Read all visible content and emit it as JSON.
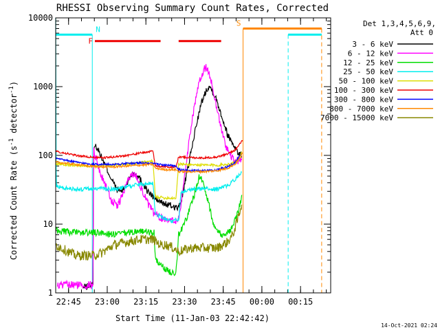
{
  "chart_data": {
    "type": "line",
    "title": "RHESSI Observing Summary Count Rates, Corrected",
    "xlabel": "Start Time (11-Jan-03 22:42:42)",
    "ylabel_main": "Corrected Count Rate (s",
    "ylabel_sup1": "-1",
    "ylabel_mid": " detector",
    "ylabel_sup2": "-1",
    "ylabel_end": ")",
    "x_range_min": [
      -2.7,
      104
    ],
    "y_range": [
      1,
      10000
    ],
    "y_scale": "log",
    "x_ticks": [
      {
        "t": 2.3,
        "label": "22:45"
      },
      {
        "t": 17.3,
        "label": "23:00"
      },
      {
        "t": 32.3,
        "label": "23:15"
      },
      {
        "t": 47.3,
        "label": "23:30"
      },
      {
        "t": 62.3,
        "label": "23:45"
      },
      {
        "t": 77.3,
        "label": "00:00"
      },
      {
        "t": 92.3,
        "label": "00:15"
      }
    ],
    "y_ticks": [
      {
        "v": 1,
        "label": "1"
      },
      {
        "v": 10,
        "label": "10"
      },
      {
        "v": 100,
        "label": "100"
      },
      {
        "v": 1000,
        "label": "1000"
      },
      {
        "v": 10000,
        "label": "10000"
      }
    ],
    "legend": {
      "position": "top-right",
      "header1": "Det 1,3,4,5,6,9,",
      "header2": "Att 0",
      "entries": [
        {
          "label": "3 - 6 keV",
          "color": "#000000"
        },
        {
          "label": "6 - 12 keV",
          "color": "#ff00ff"
        },
        {
          "label": "12 - 25 keV",
          "color": "#00dd00"
        },
        {
          "label": "25 - 50 keV",
          "color": "#00eeee"
        },
        {
          "label": "50 - 100 keV",
          "color": "#dddd00"
        },
        {
          "label": "100 - 300 keV",
          "color": "#ee0000"
        },
        {
          "label": "300 - 800 keV",
          "color": "#0000ff"
        },
        {
          "label": "800 - 7000 keV",
          "color": "#ff8800"
        },
        {
          "label": "7000 - 15000 keV",
          "color": "#888800"
        }
      ]
    },
    "flag_bars": [
      {
        "label": "N",
        "color": "#00eeee",
        "level": 5700,
        "segments": [
          [
            -2.7,
            11.5
          ],
          [
            87.5,
            100.5
          ]
        ],
        "boundaries": [
          11.5,
          87.5
        ]
      },
      {
        "label": "F",
        "color": "#ee0000",
        "level": 4600,
        "segments": [
          [
            12.5,
            38
          ],
          [
            45,
            61.5
          ]
        ]
      },
      {
        "label": "S",
        "color": "#ff8800",
        "level": 7000,
        "segments": [
          [
            70,
            100.5
          ]
        ],
        "boundaries": [
          70,
          100.5
        ]
      }
    ],
    "series": [
      {
        "name": "3 - 6 keV",
        "color": "#000000",
        "noise": 0.05,
        "points": [
          [
            8,
            1.2
          ],
          [
            11.8,
            1.3
          ],
          [
            12.0,
            140
          ],
          [
            13.5,
            130
          ],
          [
            15,
            95
          ],
          [
            17,
            65
          ],
          [
            19,
            45
          ],
          [
            21,
            32
          ],
          [
            23,
            30
          ],
          [
            25,
            40
          ],
          [
            27,
            55
          ],
          [
            29,
            52
          ],
          [
            31,
            40
          ],
          [
            33,
            30
          ],
          [
            35,
            25
          ],
          [
            37,
            22
          ],
          [
            39,
            20
          ],
          [
            41,
            19
          ],
          [
            43,
            18
          ],
          [
            45,
            17
          ],
          [
            46,
            22
          ],
          [
            48,
            50
          ],
          [
            50,
            120
          ],
          [
            52,
            300
          ],
          [
            54,
            600
          ],
          [
            56,
            950
          ],
          [
            57,
            1000
          ],
          [
            58,
            900
          ],
          [
            60,
            600
          ],
          [
            62,
            350
          ],
          [
            64,
            200
          ],
          [
            66,
            150
          ],
          [
            68,
            110
          ],
          [
            69.5,
            100
          ]
        ]
      },
      {
        "name": "6 - 12 keV",
        "color": "#ff00ff",
        "noise": 0.06,
        "points": [
          [
            -2,
            1.3
          ],
          [
            2,
            1.3
          ],
          [
            11.8,
            1.3
          ],
          [
            12.0,
            120
          ],
          [
            13,
            90
          ],
          [
            15,
            50
          ],
          [
            17,
            35
          ],
          [
            19,
            22
          ],
          [
            21,
            18
          ],
          [
            23,
            25
          ],
          [
            25,
            40
          ],
          [
            27,
            55
          ],
          [
            29,
            48
          ],
          [
            31,
            30
          ],
          [
            33,
            20
          ],
          [
            35,
            15
          ],
          [
            37,
            13
          ],
          [
            39,
            12
          ],
          [
            41,
            12
          ],
          [
            43,
            11
          ],
          [
            45,
            12
          ],
          [
            46,
            20
          ],
          [
            48,
            80
          ],
          [
            50,
            300
          ],
          [
            52,
            800
          ],
          [
            54,
            1500
          ],
          [
            55.5,
            1950
          ],
          [
            57,
            1500
          ],
          [
            59,
            700
          ],
          [
            61,
            300
          ],
          [
            63,
            150
          ],
          [
            65,
            100
          ],
          [
            67,
            80
          ],
          [
            69.5,
            90
          ]
        ]
      },
      {
        "name": "12 - 25 keV",
        "color": "#00dd00",
        "noise": 0.05,
        "points": [
          [
            -2.7,
            8
          ],
          [
            5,
            7.5
          ],
          [
            15,
            7.5
          ],
          [
            20,
            7
          ],
          [
            25,
            7.5
          ],
          [
            30,
            8
          ],
          [
            34,
            7.5
          ],
          [
            35.5,
            7.5
          ],
          [
            36,
            3
          ],
          [
            38,
            2.5
          ],
          [
            40,
            2.2
          ],
          [
            42,
            2
          ],
          [
            44,
            2
          ],
          [
            45,
            7
          ],
          [
            47,
            10
          ],
          [
            48,
            12
          ],
          [
            50,
            20
          ],
          [
            52,
            35
          ],
          [
            53,
            50
          ],
          [
            54,
            45
          ],
          [
            56,
            25
          ],
          [
            58,
            12
          ],
          [
            60,
            8
          ],
          [
            62,
            7
          ],
          [
            64,
            7.5
          ],
          [
            66,
            9
          ],
          [
            68,
            15
          ],
          [
            69.5,
            25
          ]
        ]
      },
      {
        "name": "25 - 50 keV",
        "color": "#00eeee",
        "noise": 0.03,
        "points": [
          [
            -2.7,
            10000
          ],
          [
            -2.5,
            35
          ],
          [
            5,
            32
          ],
          [
            15,
            33
          ],
          [
            20,
            32
          ],
          [
            25,
            35
          ],
          [
            30,
            38
          ],
          [
            35,
            40
          ],
          [
            36,
            14
          ],
          [
            40,
            12
          ],
          [
            43,
            11
          ],
          [
            45,
            12
          ],
          [
            46,
            30
          ],
          [
            50,
            32
          ],
          [
            55,
            33
          ],
          [
            60,
            32
          ],
          [
            65,
            38
          ],
          [
            68,
            50
          ],
          [
            69.5,
            60
          ]
        ]
      },
      {
        "name": "50 - 100 keV",
        "color": "#dddd00",
        "noise": 0.02,
        "points": [
          [
            -2.7,
            75
          ],
          [
            5,
            72
          ],
          [
            10,
            70
          ],
          [
            15,
            70
          ],
          [
            20,
            72
          ],
          [
            25,
            74
          ],
          [
            30,
            78
          ],
          [
            35,
            82
          ],
          [
            36,
            25
          ],
          [
            40,
            24
          ],
          [
            44,
            24
          ],
          [
            45,
            75
          ],
          [
            50,
            73
          ],
          [
            55,
            72
          ],
          [
            60,
            72
          ],
          [
            65,
            75
          ],
          [
            68,
            85
          ],
          [
            69.5,
            110
          ]
        ]
      },
      {
        "name": "100 - 300 keV",
        "color": "#ee0000",
        "noise": 0.015,
        "points": [
          [
            -2.7,
            115
          ],
          [
            5,
            100
          ],
          [
            10,
            95
          ],
          [
            15,
            92
          ],
          [
            20,
            95
          ],
          [
            25,
            100
          ],
          [
            30,
            108
          ],
          [
            35,
            115
          ],
          [
            36,
            70
          ],
          [
            40,
            68
          ],
          [
            44,
            68
          ],
          [
            45,
            95
          ],
          [
            50,
            93
          ],
          [
            55,
            92
          ],
          [
            60,
            95
          ],
          [
            64,
            105
          ],
          [
            67,
            120
          ],
          [
            69,
            150
          ],
          [
            70,
            170
          ]
        ]
      },
      {
        "name": "300 - 800 keV",
        "color": "#0000ff",
        "noise": 0.015,
        "points": [
          [
            -2.7,
            90
          ],
          [
            5,
            80
          ],
          [
            10,
            75
          ],
          [
            15,
            74
          ],
          [
            20,
            74
          ],
          [
            25,
            76
          ],
          [
            30,
            78
          ],
          [
            35,
            76
          ],
          [
            40,
            72
          ],
          [
            44,
            70
          ],
          [
            45,
            62
          ],
          [
            50,
            60
          ],
          [
            55,
            60
          ],
          [
            60,
            62
          ],
          [
            64,
            68
          ],
          [
            67,
            80
          ],
          [
            69,
            100
          ]
        ]
      },
      {
        "name": "800 - 7000 keV",
        "color": "#ff8800",
        "noise": 0.015,
        "points": [
          [
            -2.7,
            80
          ],
          [
            5,
            74
          ],
          [
            10,
            70
          ],
          [
            15,
            68
          ],
          [
            20,
            68
          ],
          [
            25,
            70
          ],
          [
            30,
            72
          ],
          [
            35,
            74
          ],
          [
            36,
            65
          ],
          [
            40,
            62
          ],
          [
            44,
            62
          ],
          [
            45,
            58
          ],
          [
            50,
            58
          ],
          [
            55,
            58
          ],
          [
            60,
            60
          ],
          [
            64,
            65
          ],
          [
            67,
            75
          ],
          [
            69,
            95
          ],
          [
            70,
            110
          ]
        ]
      },
      {
        "name": "7000 - 15000 keV",
        "color": "#888800",
        "noise": 0.07,
        "points": [
          [
            -2.7,
            5
          ],
          [
            2,
            4
          ],
          [
            5,
            3.5
          ],
          [
            8,
            3.5
          ],
          [
            12,
            3.5
          ],
          [
            15,
            3.8
          ],
          [
            18,
            4.5
          ],
          [
            20,
            5
          ],
          [
            25,
            5.5
          ],
          [
            30,
            6
          ],
          [
            35,
            6
          ],
          [
            38,
            5
          ],
          [
            40,
            5
          ],
          [
            43,
            4.5
          ],
          [
            45,
            4
          ],
          [
            50,
            4.5
          ],
          [
            55,
            4.5
          ],
          [
            60,
            4.5
          ],
          [
            64,
            5.5
          ],
          [
            66,
            7
          ],
          [
            68,
            12
          ],
          [
            69.5,
            20
          ]
        ]
      }
    ]
  },
  "footer_timestamp": "14-Oct-2021 02:24"
}
